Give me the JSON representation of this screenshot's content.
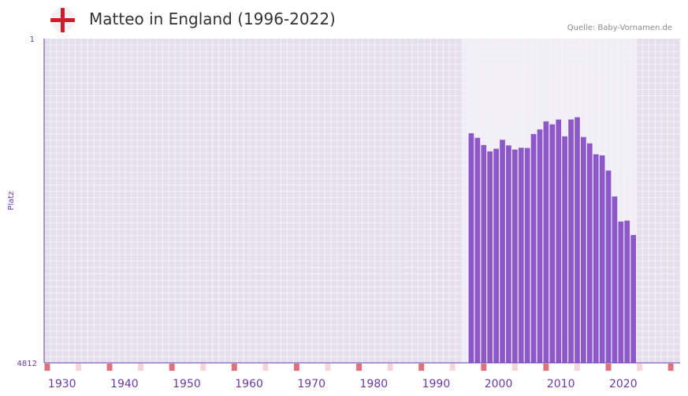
{
  "header": {
    "title": "Matteo in England (1996-2022)",
    "source": "Quelle: Baby-Vornamen.de",
    "flag_icon": "england-flag-icon"
  },
  "colors": {
    "bar": "#8e57c9",
    "axis_text": "#6b3aa8",
    "plot_bg": "#e3dfec",
    "highlight_bg": "#f1eef8",
    "grid": "#f4f2f8",
    "year_marker_major": "#e0707c",
    "year_marker_minor": "#f7d3da"
  },
  "chart_data": {
    "type": "bar",
    "title": "Matteo in England (1996-2022)",
    "xlabel": "",
    "ylabel": "Platz",
    "y_inverted": true,
    "ylim": [
      1,
      4812
    ],
    "y_tick_labels": [
      "1",
      "4812"
    ],
    "xlim": [
      1927,
      2029
    ],
    "x_ticks": [
      1930,
      1940,
      1950,
      1960,
      1970,
      1980,
      1990,
      2000,
      2010,
      2020
    ],
    "highlight_range": [
      1994,
      2021
    ],
    "x": [
      1996,
      1997,
      1998,
      1999,
      2000,
      2001,
      2002,
      2003,
      2004,
      2005,
      2006,
      2007,
      2008,
      2009,
      2010,
      2011,
      2012,
      2013,
      2014,
      2015,
      2016,
      2017,
      2018,
      2019,
      2020,
      2021,
      2022
    ],
    "series": [
      {
        "name": "Platz",
        "values": [
          1405,
          1472,
          1579,
          1674,
          1634,
          1502,
          1585,
          1647,
          1620,
          1623,
          1416,
          1348,
          1228,
          1273,
          1201,
          1451,
          1200,
          1167,
          1461,
          1555,
          1717,
          1733,
          1958,
          2343,
          2715,
          2701,
          2914
        ]
      }
    ]
  }
}
